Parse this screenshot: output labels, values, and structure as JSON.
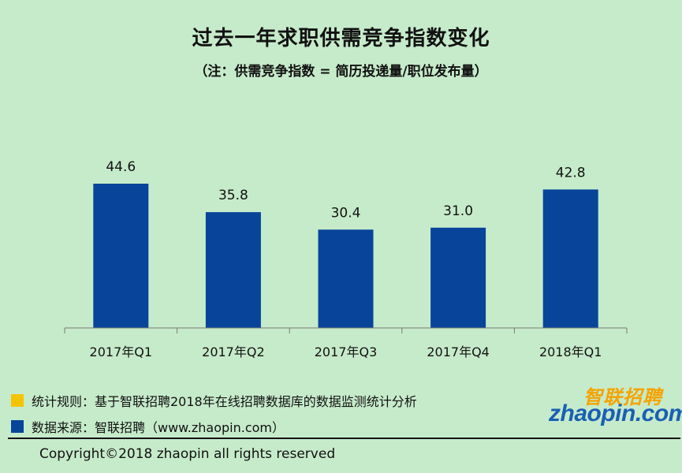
{
  "title": "过去一年求职供需竞争指数变化",
  "subtitle": "（注：供需竞争指数 = 简历投递量/职位发布量）",
  "chart_data": {
    "type": "bar",
    "categories": [
      "2017年Q1",
      "2017年Q2",
      "2017年Q3",
      "2017年Q4",
      "2018年Q1"
    ],
    "values": [
      44.6,
      35.8,
      30.4,
      31.0,
      42.8
    ],
    "value_labels": [
      "44.6",
      "35.8",
      "30.4",
      "31.0",
      "42.8"
    ],
    "ylim": [
      0,
      50
    ],
    "bar_color": "#08449a",
    "grid": false
  },
  "notes": {
    "rule": {
      "text": "统计规则：基于智联招聘2018年在线招聘数据库的数据监测统计分析",
      "color": "#f5c400"
    },
    "source": {
      "text": "数据来源：智联招聘（www.zhaopin.com）",
      "color": "#08449a"
    }
  },
  "copyright": "Copyright©2018 zhaopin all rights reserved",
  "logo": {
    "cn": "智联招聘",
    "en": "zhaopin.com"
  }
}
